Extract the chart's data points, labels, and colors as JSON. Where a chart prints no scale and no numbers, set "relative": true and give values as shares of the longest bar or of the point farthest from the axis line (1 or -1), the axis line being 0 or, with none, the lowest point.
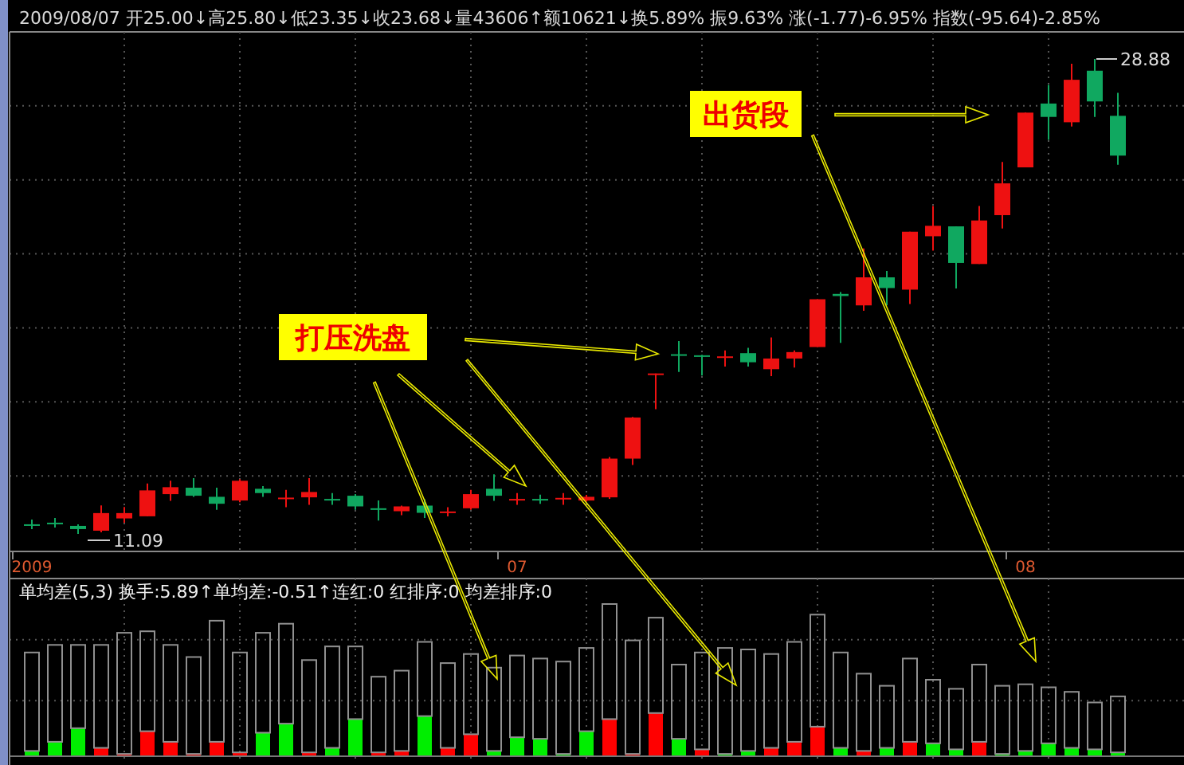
{
  "chart_data": [
    {
      "type": "candlestick",
      "title": "2009/08/07 开25.00↓高25.80↓低23.35↓收23.68↓量43606↑额10621↓换5.89% 振9.63% 涨(-1.77)-6.95% 指数(-95.64)-2.85%",
      "categories": [
        "2009",
        null,
        null,
        null,
        null,
        null,
        null,
        null,
        null,
        null,
        null,
        null,
        null,
        null,
        null,
        null,
        null,
        null,
        null,
        null,
        null,
        "07",
        null,
        null,
        null,
        null,
        null,
        null,
        null,
        null,
        null,
        null,
        null,
        null,
        null,
        null,
        null,
        null,
        null,
        null,
        null,
        null,
        null,
        "08",
        null,
        null,
        null,
        null
      ],
      "ohlc": [
        [
          11.45,
          11.63,
          11.27,
          11.44
        ],
        [
          11.51,
          11.69,
          11.33,
          11.5
        ],
        [
          11.39,
          11.45,
          11.09,
          11.27
        ],
        [
          11.21,
          12.16,
          11.15,
          11.87
        ],
        [
          11.67,
          12.1,
          11.51,
          11.87
        ],
        [
          11.75,
          12.98,
          11.75,
          12.72
        ],
        [
          12.58,
          13.08,
          12.33,
          12.84
        ],
        [
          12.82,
          13.18,
          12.48,
          12.52
        ],
        [
          12.48,
          12.82,
          11.99,
          12.22
        ],
        [
          12.34,
          13.14,
          12.28,
          13.08
        ],
        [
          12.78,
          12.88,
          12.48,
          12.62
        ],
        [
          12.42,
          12.74,
          12.09,
          12.45
        ],
        [
          12.46,
          13.18,
          12.18,
          12.66
        ],
        [
          12.4,
          12.62,
          12.18,
          12.38
        ],
        [
          12.52,
          12.58,
          11.99,
          12.12
        ],
        [
          12.05,
          12.34,
          11.59,
          12.04
        ],
        [
          11.94,
          12.15,
          11.79,
          12.12
        ],
        [
          12.15,
          12.39,
          11.69,
          11.88
        ],
        [
          11.9,
          12.09,
          11.75,
          11.93
        ],
        [
          12.05,
          12.74,
          11.99,
          12.58
        ],
        [
          12.78,
          13.32,
          12.33,
          12.52
        ],
        [
          12.38,
          12.62,
          12.18,
          12.4
        ],
        [
          12.4,
          12.56,
          12.22,
          12.38
        ],
        [
          12.4,
          12.62,
          12.18,
          12.44
        ],
        [
          12.34,
          12.55,
          12.3,
          12.48
        ],
        [
          12.46,
          13.97,
          12.4,
          13.91
        ],
        [
          13.91,
          15.47,
          13.67,
          15.45
        ],
        [
          17.1,
          17.1,
          15.76,
          17.1
        ],
        [
          17.82,
          18.31,
          17.16,
          17.78
        ],
        [
          17.78,
          17.8,
          17.02,
          17.76
        ],
        [
          17.7,
          17.96,
          17.36,
          17.74
        ],
        [
          17.86,
          18.06,
          17.36,
          17.52
        ],
        [
          17.26,
          18.45,
          17.0,
          17.66
        ],
        [
          17.66,
          17.96,
          17.32,
          17.9
        ],
        [
          18.09,
          19.88,
          18.09,
          19.88
        ],
        [
          20.08,
          20.15,
          18.25,
          20.0
        ],
        [
          19.65,
          21.78,
          19.45,
          20.7
        ],
        [
          20.7,
          20.94,
          19.65,
          20.3
        ],
        [
          20.24,
          22.41,
          19.7,
          22.41
        ],
        [
          22.24,
          23.37,
          21.7,
          22.63
        ],
        [
          22.61,
          22.61,
          20.28,
          21.24
        ],
        [
          21.2,
          23.37,
          21.2,
          22.83
        ],
        [
          23.03,
          25.02,
          22.53,
          24.22
        ],
        [
          24.82,
          26.87,
          24.82,
          26.87
        ],
        [
          27.21,
          27.91,
          25.85,
          26.71
        ],
        [
          26.51,
          28.7,
          26.35,
          28.1
        ],
        [
          28.44,
          28.88,
          26.71,
          27.29
        ],
        [
          26.75,
          27.61,
          24.92,
          25.26
        ]
      ],
      "colors": [
        "#10a860",
        "#10a860",
        "#10a860",
        "#ee1111",
        "#ee1111",
        "#ee1111",
        "#ee1111",
        "#10a860",
        "#10a860",
        "#ee1111",
        "#10a860",
        "#ee1111",
        "#ee1111",
        "#10a860",
        "#10a860",
        "#10a860",
        "#ee1111",
        "#10a860",
        "#ee1111",
        "#ee1111",
        "#10a860",
        "#ee1111",
        "#10a860",
        "#ee1111",
        "#ee1111",
        "#ee1111",
        "#ee1111",
        "#ee1111",
        "#10a860",
        "#10a860",
        "#ee1111",
        "#10a860",
        "#ee1111",
        "#ee1111",
        "#ee1111",
        "#10a860",
        "#ee1111",
        "#10a860",
        "#ee1111",
        "#ee1111",
        "#10a860",
        "#ee1111",
        "#ee1111",
        "#ee1111",
        "#10a860",
        "#ee1111",
        "#10a860",
        "#10a860"
      ],
      "annotations": [
        "出货段",
        "打压洗盘",
        "28.88",
        "11.09"
      ],
      "grid": true
    },
    {
      "type": "bar",
      "relative": true,
      "stacked": true,
      "title": "单均差(5,3) 换手:5.89↑单均差:-0.51↑连红:0 红排序:0 均差排序:0",
      "grid": true,
      "categories": [
        null,
        null,
        null,
        null,
        null,
        null,
        null,
        null,
        null,
        null,
        null,
        null,
        null,
        null,
        null,
        null,
        null,
        null,
        null,
        null,
        null,
        null,
        null,
        null,
        null,
        null,
        null,
        null,
        null,
        null,
        null,
        null,
        null,
        null,
        null,
        null,
        null,
        null,
        null,
        null,
        null,
        null,
        null,
        null,
        null,
        null,
        null,
        null
      ],
      "series": [
        {
          "colors": [
            "#00ee00",
            "#00ee00",
            "#00ee00",
            "#ff0000",
            "#ff0000",
            "#ff0000",
            "#ff0000",
            "#ff0000",
            "#ff0000",
            "#ff0000",
            "#00ee00",
            "#00ee00",
            "#ff0000",
            "#00ee00",
            "#00ee00",
            "#ff0000",
            "#ff0000",
            "#00ee00",
            "#ff0000",
            "#ff0000",
            "#00ee00",
            "#00ee00",
            "#00ee00",
            "#00ee00",
            "#00ee00",
            "#ff0000",
            "#ff0000",
            "#ff0000",
            "#00ee00",
            "#ff0000",
            "#00ee00",
            "#00ee00",
            "#ff0000",
            "#ff0000",
            "#ff0000",
            "#00ee00",
            "#ff0000",
            "#00ee00",
            "#ff0000",
            "#00ee00",
            "#00ee00",
            "#ff0000",
            "#00ee00",
            "#00ee00",
            "#00ee00",
            "#00ee00",
            "#00ee00",
            "#00ee00"
          ],
          "values": [
            0.03,
            0.09,
            0.18,
            0.05,
            0.01,
            0.16,
            0.09,
            0.01,
            0.09,
            0.02,
            0.15,
            0.21,
            0.02,
            0.05,
            0.24,
            0.02,
            0.03,
            0.26,
            0.05,
            0.14,
            0.03,
            0.12,
            0.11,
            0.01,
            0.16,
            0.24,
            0.01,
            0.28,
            0.11,
            0.04,
            0.01,
            0.03,
            0.05,
            0.09,
            0.19,
            0.05,
            0.03,
            0.05,
            0.09,
            0.08,
            0.04,
            0.09,
            0.01,
            0.03,
            0.08,
            0.05,
            0.04,
            0.02
          ]
        },
        {
          "color": "#909090",
          "values": [
            0.65,
            0.64,
            0.55,
            0.68,
            0.8,
            0.66,
            0.64,
            0.64,
            0.8,
            0.66,
            0.66,
            0.66,
            0.61,
            0.67,
            0.48,
            0.5,
            0.53,
            0.49,
            0.56,
            0.53,
            0.55,
            0.54,
            0.53,
            0.61,
            0.55,
            0.76,
            0.75,
            0.63,
            0.49,
            0.64,
            0.7,
            0.67,
            0.62,
            0.66,
            0.74,
            0.63,
            0.51,
            0.41,
            0.55,
            0.42,
            0.4,
            0.51,
            0.45,
            0.44,
            0.37,
            0.37,
            0.31,
            0.37
          ]
        }
      ]
    }
  ]
}
